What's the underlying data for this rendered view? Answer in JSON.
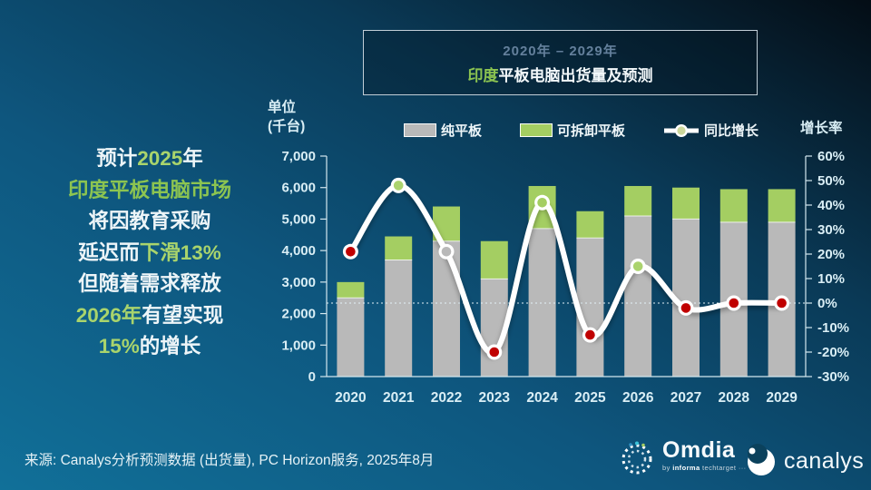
{
  "title_box": {
    "range_line": "2020年 – 2029年",
    "title_highlight": "印度",
    "title_rest": "平板电脑出货量及预测"
  },
  "left_axis_unit": {
    "line1": "单位",
    "line2": "(千台)"
  },
  "right_axis_title": "增长率",
  "legend": [
    {
      "label": "纯平板",
      "swatch_color": "#b9b9b9"
    },
    {
      "label": "可拆卸平板",
      "swatch_color": "#a4ce62"
    },
    {
      "label": "同比增长",
      "swatch_color": "#ffffff"
    }
  ],
  "annotation": {
    "lines": [
      {
        "segments": [
          {
            "text": "预计",
            "style": "white"
          },
          {
            "text": "2025",
            "style": "green"
          },
          {
            "text": "年",
            "style": "white"
          }
        ]
      },
      {
        "segments": [
          {
            "text": "印度平板电脑市场",
            "style": "green-deep"
          }
        ]
      },
      {
        "segments": [
          {
            "text": "将因教育采购",
            "style": "white"
          }
        ]
      },
      {
        "segments": [
          {
            "text": "延迟而",
            "style": "white"
          },
          {
            "text": "下滑13%",
            "style": "green"
          }
        ]
      },
      {
        "segments": [
          {
            "text": "但随着需求释放",
            "style": "white"
          }
        ]
      },
      {
        "segments": [
          {
            "text": "2026年",
            "style": "green"
          },
          {
            "text": "有望实现",
            "style": "white"
          }
        ]
      },
      {
        "segments": [
          {
            "text": "15%",
            "style": "green"
          },
          {
            "text": "的增长",
            "style": "white"
          }
        ]
      }
    ]
  },
  "chart_data": {
    "type": "combo: stacked bar + smoothed line",
    "categories": [
      "2020",
      "2021",
      "2022",
      "2023",
      "2024",
      "2025",
      "2026",
      "2027",
      "2028",
      "2029"
    ],
    "series": [
      {
        "name": "纯平板",
        "type": "bar",
        "stack": "units",
        "color": "#b9b9b9",
        "values": [
          2500,
          3700,
          4300,
          3100,
          4700,
          4400,
          5100,
          5000,
          4900,
          4900
        ]
      },
      {
        "name": "可拆卸平板",
        "type": "bar",
        "stack": "units",
        "color": "#a4ce62",
        "values": [
          500,
          750,
          1100,
          1200,
          1350,
          850,
          950,
          1000,
          1050,
          1050
        ]
      },
      {
        "name": "同比增长",
        "type": "line",
        "color": "#ffffff",
        "axis": "right",
        "values": [
          21,
          48,
          21,
          -20,
          41,
          -13,
          15,
          -2,
          0,
          0
        ],
        "marker_fills": [
          "#c00000",
          "#abd36e",
          "#b9b9b9",
          "#c00000",
          "#a4ce62",
          "#c00000",
          "#abd36e",
          "#c00000",
          "#c00000",
          "#c00000"
        ]
      }
    ],
    "left_axis": {
      "label": "单位 (千台)",
      "min": 0,
      "max": 7000,
      "ticks": [
        "7,000",
        "6,000",
        "5,000",
        "4,000",
        "3,000",
        "2,000",
        "1,000",
        "0"
      ]
    },
    "right_axis": {
      "label": "增长率",
      "min": -30,
      "max": 60,
      "ticks": [
        "60%",
        "50%",
        "40%",
        "30%",
        "20%",
        "10%",
        "0%",
        "-10%",
        "-20%",
        "-30%"
      ]
    },
    "zero_growth_gridline": true,
    "legend_position": "top",
    "title": "2020年 – 2029年 印度平板电脑出货量及预测"
  },
  "colors": {
    "bar_gray": "#b9b9b9",
    "bar_green": "#a4ce62",
    "line_white": "#ffffff",
    "marker_red": "#c00000",
    "annotation_green": "#a9d46c",
    "axis_text": "#d9eef5"
  },
  "footer": {
    "source": "来源: Canalys分析预测数据 (出货量), PC Horizon服务, 2025年8月",
    "logos": {
      "omdia": {
        "name": "Omdia",
        "tagline_by": "by ",
        "tagline_brand": "informa",
        "tagline_rest": " techtarget ···"
      },
      "canalys": {
        "name": "canalys"
      }
    }
  }
}
